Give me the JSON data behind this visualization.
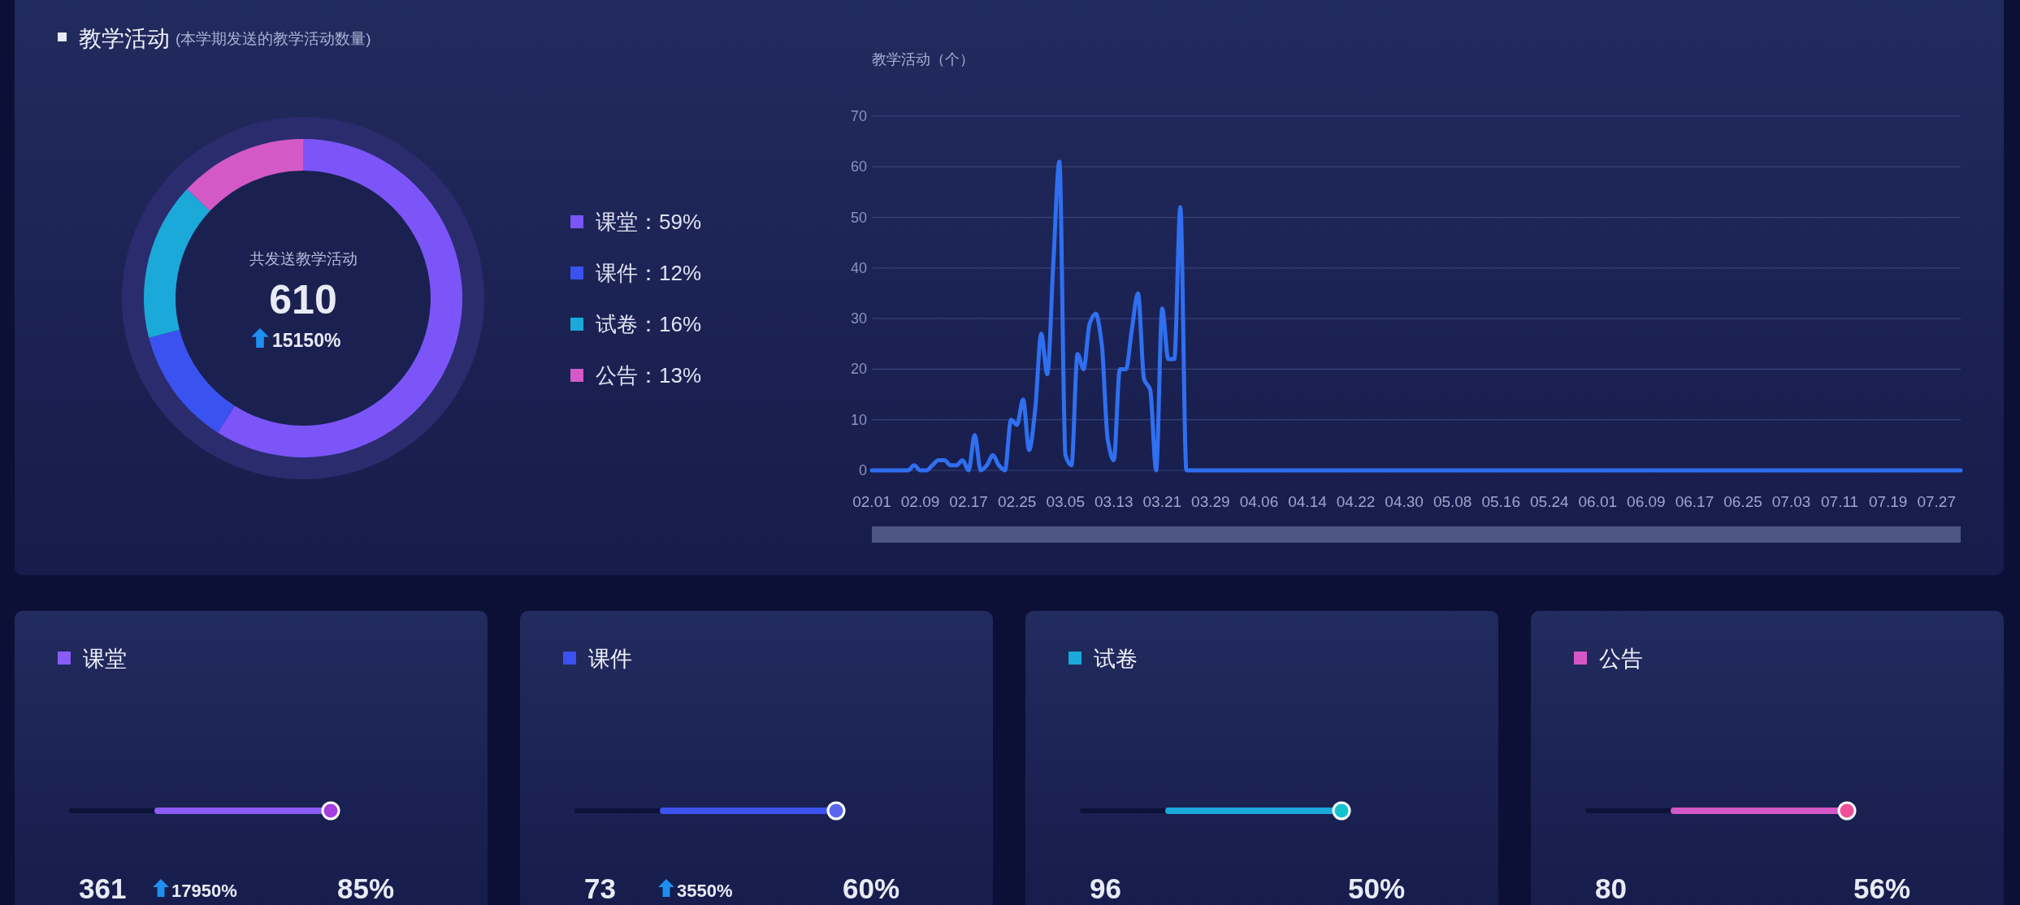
{
  "chart_data": [
    {
      "type": "donut",
      "title": "教学活动",
      "subtitle": "(本学期发送的教学活动数量)",
      "categories": [
        "课堂",
        "课件",
        "试卷",
        "公告"
      ],
      "values": [
        59,
        12,
        16,
        13
      ],
      "value_labels": [
        "：59%",
        "：12%",
        "：16%",
        "：13%"
      ],
      "colors": [
        "#7b55f8",
        "#3a52f0",
        "#1ba9da",
        "#d35ac6"
      ],
      "legend": "right",
      "annotations": [
        "共发送教学活动",
        "610",
        "15150%"
      ]
    },
    {
      "type": "line",
      "ylabel": "教学活动（个）",
      "color": "#2f6ff0",
      "grid": "y",
      "ylim": [
        0,
        70
      ],
      "yticks": [
        0,
        10,
        20,
        30,
        40,
        50,
        60,
        70
      ],
      "xlim": [
        "--02-01",
        "--07-31"
      ],
      "xticks": [
        {
          "value": "--02-01",
          "label": "02.01"
        },
        {
          "value": "--02-09",
          "label": "02.09"
        },
        {
          "value": "--02-17",
          "label": "02.17"
        },
        {
          "value": "--02-25",
          "label": "02.25"
        },
        {
          "value": "--03-05",
          "label": "03.05"
        },
        {
          "value": "--03-13",
          "label": "03.13"
        },
        {
          "value": "--03-21",
          "label": "03.21"
        },
        {
          "value": "--03-29",
          "label": "03.29"
        },
        {
          "value": "--04-06",
          "label": "04.06"
        },
        {
          "value": "--04-14",
          "label": "04.14"
        },
        {
          "value": "--04-22",
          "label": "04.22"
        },
        {
          "value": "--04-30",
          "label": "04.30"
        },
        {
          "value": "--05-08",
          "label": "05.08"
        },
        {
          "value": "--05-16",
          "label": "05.16"
        },
        {
          "value": "--05-24",
          "label": "05.24"
        },
        {
          "value": "--06-01",
          "label": "06.01"
        },
        {
          "value": "--06-09",
          "label": "06.09"
        },
        {
          "value": "--06-17",
          "label": "06.17"
        },
        {
          "value": "--06-25",
          "label": "06.25"
        },
        {
          "value": "--07-03",
          "label": "07.03"
        },
        {
          "value": "--07-11",
          "label": "07.11"
        },
        {
          "value": "--07-19",
          "label": "07.19"
        },
        {
          "value": "--07-27",
          "label": "07.27"
        }
      ],
      "x": [
        "--02-01",
        "--02-02",
        "--02-03",
        "--02-04",
        "--02-05",
        "--02-06",
        "--02-07",
        "--02-08",
        "--02-09",
        "--02-10",
        "--02-11",
        "--02-12",
        "--02-13",
        "--02-14",
        "--02-15",
        "--02-16",
        "--02-17",
        "--02-18",
        "--02-19",
        "--02-20",
        "--02-21",
        "--02-22",
        "--02-23",
        "--02-24",
        "--02-25",
        "--02-26",
        "--02-27",
        "--02-28",
        "--03-01",
        "--03-02",
        "--03-03",
        "--03-04",
        "--03-05",
        "--03-06",
        "--03-07",
        "--03-08",
        "--03-09",
        "--03-10",
        "--03-11",
        "--03-12",
        "--03-13",
        "--03-14",
        "--03-15",
        "--03-16",
        "--03-17",
        "--03-18",
        "--03-19",
        "--03-20",
        "--03-21",
        "--03-22",
        "--03-23",
        "--03-24",
        "--03-25",
        "--07-31"
      ],
      "values": [
        0,
        0,
        0,
        0,
        0,
        0,
        0,
        1,
        0,
        0,
        1,
        2,
        2,
        1,
        1,
        2,
        0,
        7,
        0,
        1,
        3,
        1,
        0,
        10,
        9,
        14,
        4,
        12,
        27,
        19,
        41,
        61,
        3,
        1,
        23,
        20,
        29,
        31,
        25,
        6,
        2,
        20,
        20,
        28,
        35,
        18,
        16,
        0,
        32,
        22,
        22,
        52,
        0,
        0
      ]
    },
    {
      "type": "other",
      "title": "课堂",
      "annotations": [
        "361",
        "17950%",
        "85%"
      ]
    },
    {
      "type": "other",
      "title": "课件",
      "annotations": [
        "73",
        "3550%",
        "60%"
      ]
    },
    {
      "type": "other",
      "title": "试卷",
      "annotations": [
        "96",
        "50%"
      ]
    },
    {
      "type": "other",
      "title": "公告",
      "annotations": [
        "80",
        "56%"
      ]
    }
  ]
}
